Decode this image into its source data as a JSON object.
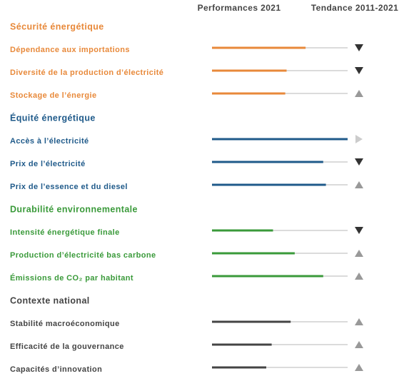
{
  "columns": [
    "Performances 2021",
    "Tendance 2011-2021"
  ],
  "xlim": [
    0,
    100
  ],
  "groups": [
    {
      "title": "Sécurité énergétique",
      "color": "#e8893a",
      "items": [
        {
          "label": "Dépendance aux importations",
          "performance": 69,
          "trend": "down"
        },
        {
          "label": "Diversité de la production d’électricité",
          "performance": 55,
          "trend": "down"
        },
        {
          "label": "Stockage de l’énergie",
          "performance": 54,
          "trend": "up"
        }
      ]
    },
    {
      "title": "Équité énergétique",
      "color": "#1f5a8a",
      "items": [
        {
          "label": "Accès à l’électricité",
          "performance": 100,
          "trend": "flat"
        },
        {
          "label": "Prix de l’électricité",
          "performance": 82,
          "trend": "down"
        },
        {
          "label": "Prix de l’essence et du diesel",
          "performance": 84,
          "trend": "up"
        }
      ]
    },
    {
      "title": "Durabilité environnementale",
      "color": "#3a9a3a",
      "items": [
        {
          "label": "Intensité énergétique finale",
          "performance": 45,
          "trend": "down"
        },
        {
          "label": "Production d’électricité bas carbone",
          "performance": 61,
          "trend": "up"
        },
        {
          "label": "Émissions de CO₂ par habitant",
          "performance": 82,
          "trend": "up"
        }
      ]
    },
    {
      "title": "Contexte national",
      "color": "#444444",
      "items": [
        {
          "label": "Stabilité macroéconomique",
          "performance": 58,
          "trend": "up"
        },
        {
          "label": "Efficacité de la gouvernance",
          "performance": 44,
          "trend": "up"
        },
        {
          "label": "Capacités d’innovation",
          "performance": 40,
          "trend": "up"
        }
      ]
    }
  ]
}
